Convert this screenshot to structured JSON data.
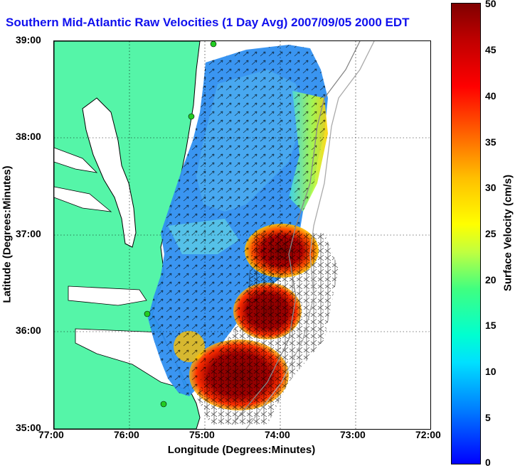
{
  "title": "Southern Mid-Atlantic Raw Velocities (1 Day Avg) 2007/09/05 2000 EDT",
  "xlabel": "Longitude (Degrees:Minutes)",
  "ylabel": "Latitude (Degrees:Minutes)",
  "x_ticks": [
    "77:00",
    "76:00",
    "75:00",
    "74:00",
    "73:00",
    "72:00"
  ],
  "y_ticks": [
    "39:00",
    "38:00",
    "37:00",
    "36:00",
    "35:00"
  ],
  "colorbar": {
    "label": "Surface Velocity (cm/s)",
    "ticks": [
      "0",
      "5",
      "10",
      "15",
      "20",
      "25",
      "30",
      "35",
      "40",
      "45",
      "50"
    ],
    "range": [
      0,
      50
    ]
  },
  "colors": {
    "land": "#55f5a8",
    "water": "#ffffff",
    "title": "#1010ee",
    "station": "#22cc22"
  }
}
